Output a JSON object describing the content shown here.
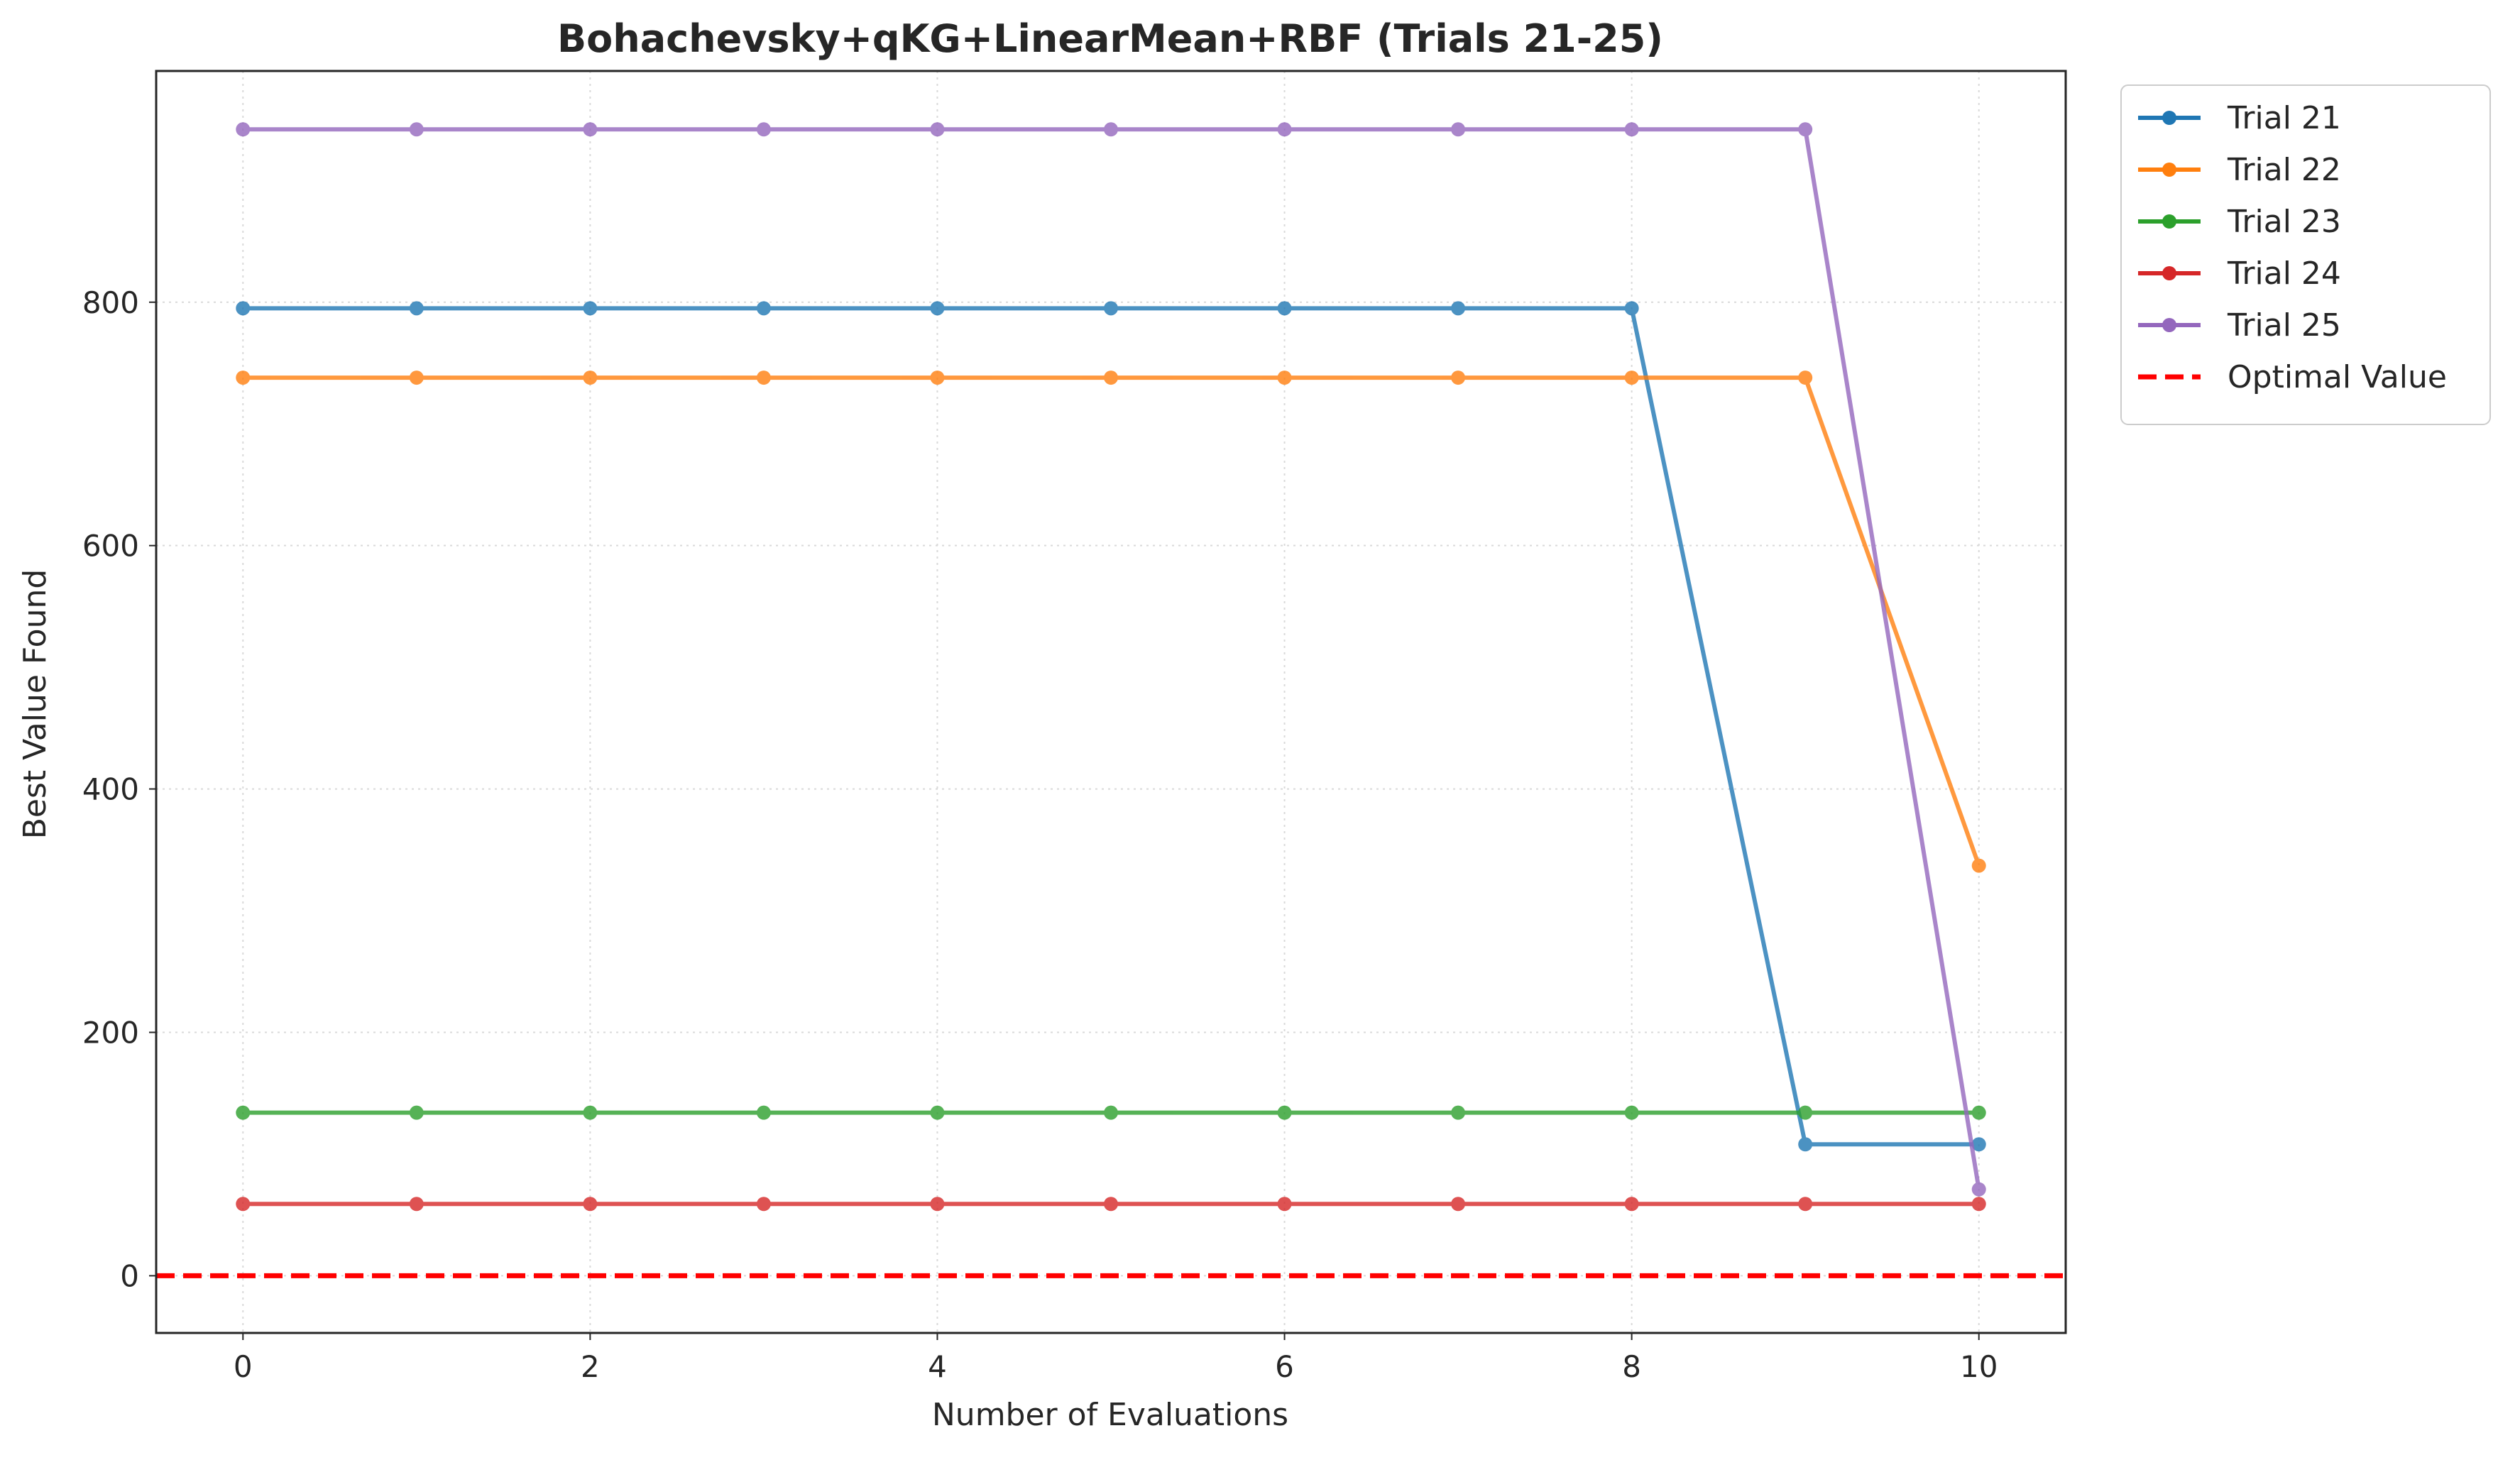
{
  "chart_data": {
    "type": "line",
    "title": "Bohachevsky+qKG+LinearMean+RBF (Trials 21-25)",
    "xlabel": "Number of Evaluations",
    "ylabel": "Best Value Found",
    "xlim": [
      -0.5,
      10.5
    ],
    "ylim": [
      -47,
      990
    ],
    "xticks": [
      0,
      2,
      4,
      6,
      8,
      10
    ],
    "yticks": [
      0,
      200,
      400,
      600,
      800
    ],
    "grid": true,
    "legend_position": "outside-top-right",
    "x": [
      0,
      1,
      2,
      3,
      4,
      5,
      6,
      7,
      8,
      9,
      10
    ],
    "series": [
      {
        "name": "Trial 21",
        "color": "#1f77b4",
        "values": [
          795,
          795,
          795,
          795,
          795,
          795,
          795,
          795,
          795,
          108,
          108
        ]
      },
      {
        "name": "Trial 22",
        "color": "#ff7f0e",
        "values": [
          738,
          738,
          738,
          738,
          738,
          738,
          738,
          738,
          738,
          738,
          337
        ]
      },
      {
        "name": "Trial 23",
        "color": "#2ca02c",
        "values": [
          134,
          134,
          134,
          134,
          134,
          134,
          134,
          134,
          134,
          134,
          134
        ]
      },
      {
        "name": "Trial 24",
        "color": "#d62728",
        "values": [
          59,
          59,
          59,
          59,
          59,
          59,
          59,
          59,
          59,
          59,
          59
        ]
      },
      {
        "name": "Trial 25",
        "color": "#9467bd",
        "values": [
          942,
          942,
          942,
          942,
          942,
          942,
          942,
          942,
          942,
          942,
          71
        ]
      }
    ],
    "reference_line": {
      "name": "Optimal Value",
      "value": 0,
      "color": "#ff0000",
      "style": "dashed"
    }
  }
}
